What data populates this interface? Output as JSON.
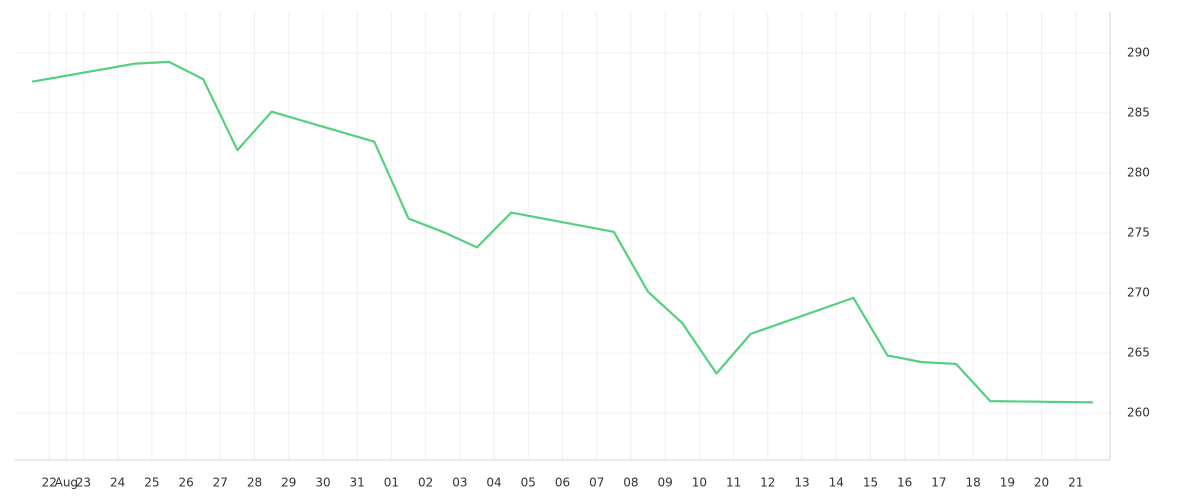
{
  "chart_data": {
    "type": "line",
    "x": [
      -0.5,
      2.5,
      3.5,
      4.5,
      5.5,
      6.5,
      9.5,
      10.5,
      11.5,
      12.5,
      13.5,
      16.5,
      17.5,
      18.5,
      19.5,
      20.5,
      23.5,
      24.5,
      25.5,
      26.5,
      27.5,
      30.5
    ],
    "series": [
      {
        "color": "#55d07f",
        "values": [
          287.6,
          289.1,
          289.25,
          287.8,
          281.9,
          285.1,
          282.6,
          276.2,
          275.1,
          273.8,
          276.7,
          275.1,
          270.1,
          267.5,
          263.3,
          266.6,
          269.6,
          264.8,
          264.25,
          264.1,
          261.0,
          260.9
        ]
      }
    ],
    "xlim": [
      -1,
      31
    ],
    "xticks": [
      {
        "value": 0,
        "label": "22"
      },
      {
        "value": 0.5,
        "label": "Aug"
      },
      {
        "value": 1,
        "label": "23"
      },
      {
        "value": 2,
        "label": "24"
      },
      {
        "value": 3,
        "label": "25"
      },
      {
        "value": 4,
        "label": "26"
      },
      {
        "value": 5,
        "label": "27"
      },
      {
        "value": 6,
        "label": "28"
      },
      {
        "value": 7,
        "label": "29"
      },
      {
        "value": 8,
        "label": "30"
      },
      {
        "value": 9,
        "label": "31"
      },
      {
        "value": 10,
        "label": "01"
      },
      {
        "value": 11,
        "label": "02"
      },
      {
        "value": 12,
        "label": "03"
      },
      {
        "value": 13,
        "label": "04"
      },
      {
        "value": 14,
        "label": "05"
      },
      {
        "value": 15,
        "label": "06"
      },
      {
        "value": 16,
        "label": "07"
      },
      {
        "value": 17,
        "label": "08"
      },
      {
        "value": 18,
        "label": "09"
      },
      {
        "value": 19,
        "label": "10"
      },
      {
        "value": 20,
        "label": "11"
      },
      {
        "value": 21,
        "label": "12"
      },
      {
        "value": 22,
        "label": "13"
      },
      {
        "value": 23,
        "label": "14"
      },
      {
        "value": 24,
        "label": "15"
      },
      {
        "value": 25,
        "label": "16"
      },
      {
        "value": 26,
        "label": "17"
      },
      {
        "value": 27,
        "label": "18"
      },
      {
        "value": 28,
        "label": "19"
      },
      {
        "value": 29,
        "label": "20"
      },
      {
        "value": 30,
        "label": "21"
      }
    ],
    "ylim": [
      256.1,
      293.4
    ],
    "yticks": [
      260,
      265,
      270,
      275,
      280,
      285,
      290
    ],
    "grid": true
  }
}
